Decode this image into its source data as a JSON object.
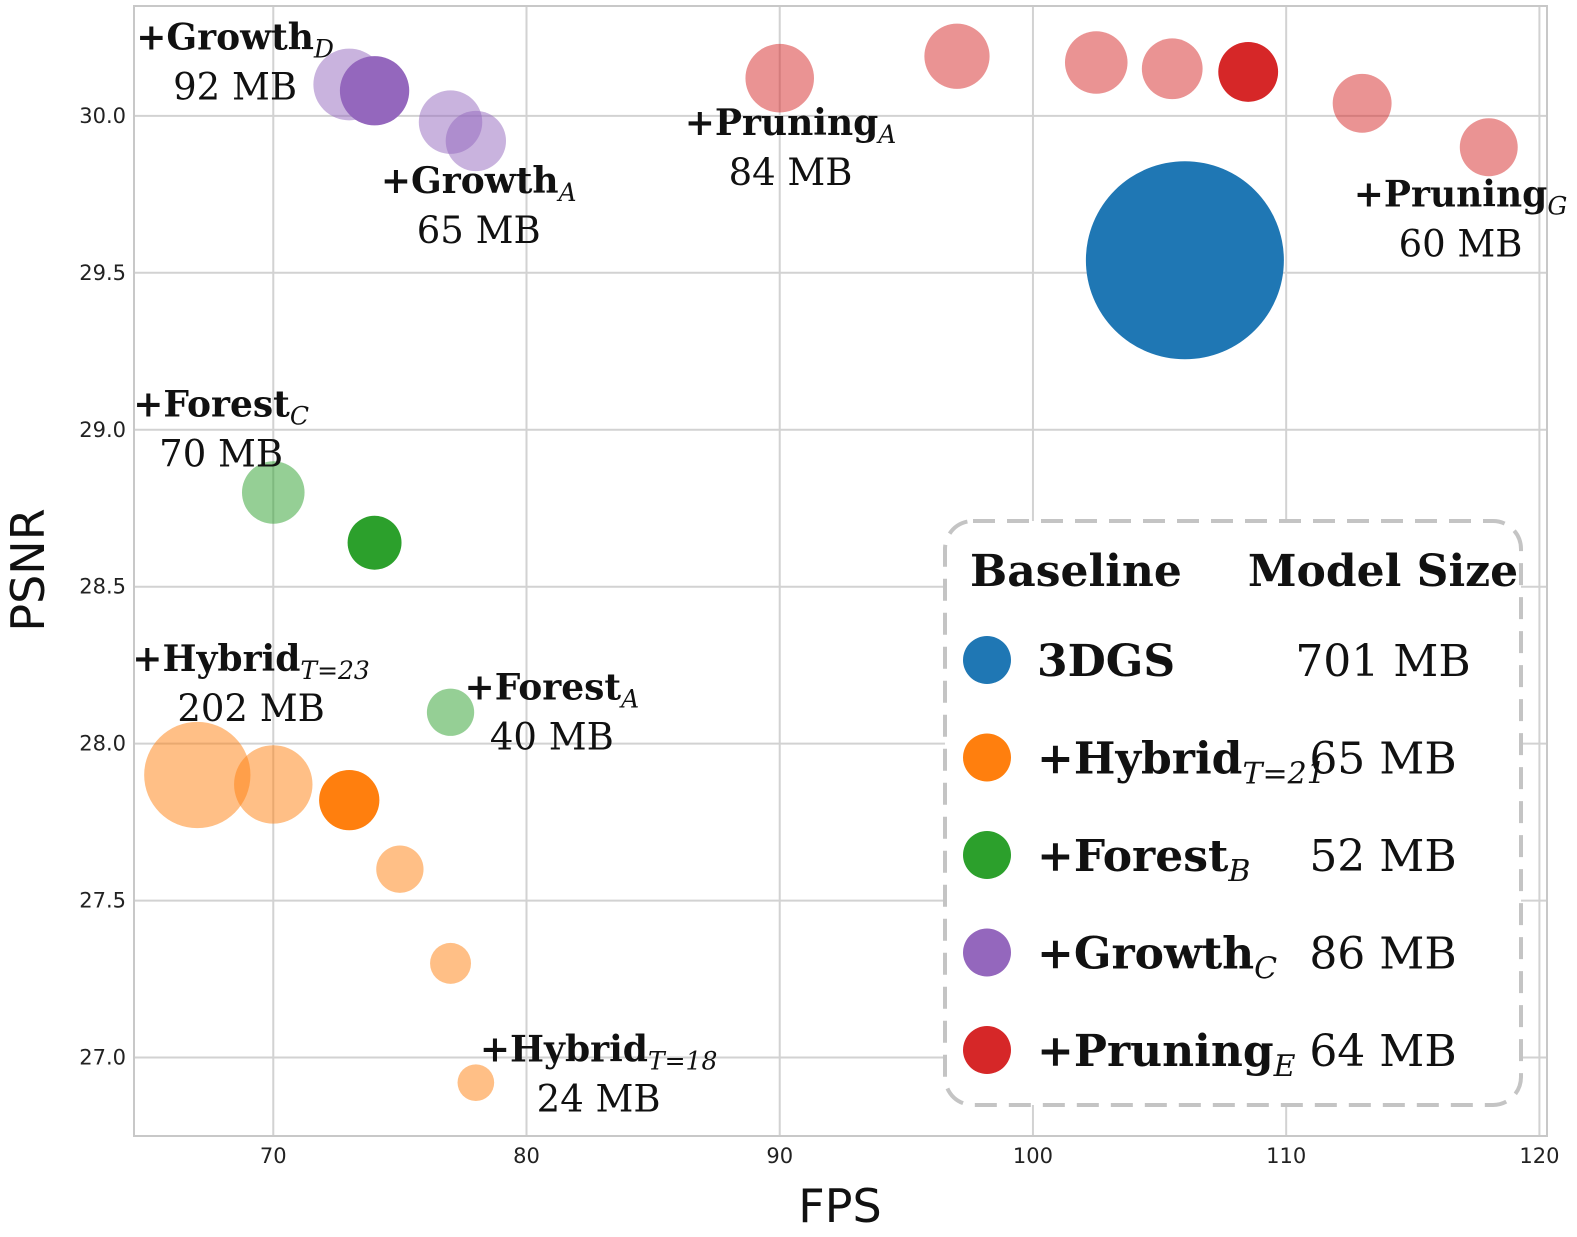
{
  "chart_data": {
    "type": "scatter",
    "xlabel": "FPS",
    "ylabel": "PSNR",
    "xlim": [
      64.5,
      120.3
    ],
    "ylim": [
      26.75,
      30.35
    ],
    "xticks": [
      "70",
      "80",
      "90",
      "100",
      "110",
      "120"
    ],
    "yticks": [
      "27.0",
      "27.5",
      "28.0",
      "28.5",
      "29.0",
      "29.5",
      "30.0"
    ],
    "grid": true,
    "colors": {
      "3dgs": "#1f77b4",
      "hybrid": "#ff7f0e",
      "forest": "#2ca02c",
      "growth": "#9467bd",
      "pruning": "#d62728"
    },
    "series": [
      {
        "name": "3DGS",
        "group": "3dgs",
        "points": [
          {
            "fps": 106,
            "psnr": 29.54,
            "size_mb": 701,
            "highlight": true
          }
        ]
      },
      {
        "name": "+Hybrid",
        "group": "hybrid",
        "points": [
          {
            "fps": 67,
            "psnr": 27.9,
            "size_mb": 202,
            "highlight": false
          },
          {
            "fps": 70,
            "psnr": 27.87,
            "size_mb": 110,
            "highlight": false
          },
          {
            "fps": 73,
            "psnr": 27.82,
            "size_mb": 65,
            "highlight": true
          },
          {
            "fps": 75,
            "psnr": 27.6,
            "size_mb": 40,
            "highlight": false
          },
          {
            "fps": 77,
            "psnr": 27.3,
            "size_mb": 30,
            "highlight": false
          },
          {
            "fps": 78,
            "psnr": 26.92,
            "size_mb": 24,
            "highlight": false
          }
        ]
      },
      {
        "name": "+Forest",
        "group": "forest",
        "points": [
          {
            "fps": 70,
            "psnr": 28.8,
            "size_mb": 70,
            "highlight": false
          },
          {
            "fps": 74,
            "psnr": 28.64,
            "size_mb": 52,
            "highlight": true
          },
          {
            "fps": 77,
            "psnr": 28.1,
            "size_mb": 40,
            "highlight": false
          }
        ]
      },
      {
        "name": "+Growth",
        "group": "growth",
        "points": [
          {
            "fps": 73,
            "psnr": 30.1,
            "size_mb": 92,
            "highlight": false
          },
          {
            "fps": 74,
            "psnr": 30.08,
            "size_mb": 86,
            "highlight": true
          },
          {
            "fps": 77,
            "psnr": 29.98,
            "size_mb": 72,
            "highlight": false
          },
          {
            "fps": 78,
            "psnr": 29.92,
            "size_mb": 65,
            "highlight": false
          }
        ]
      },
      {
        "name": "+Pruning",
        "group": "pruning",
        "points": [
          {
            "fps": 90,
            "psnr": 30.12,
            "size_mb": 84,
            "highlight": false
          },
          {
            "fps": 97,
            "psnr": 30.19,
            "size_mb": 76,
            "highlight": false
          },
          {
            "fps": 102.5,
            "psnr": 30.17,
            "size_mb": 70,
            "highlight": false
          },
          {
            "fps": 105.5,
            "psnr": 30.15,
            "size_mb": 66,
            "highlight": false
          },
          {
            "fps": 108.5,
            "psnr": 30.14,
            "size_mb": 64,
            "highlight": true
          },
          {
            "fps": 113,
            "psnr": 30.04,
            "size_mb": 62,
            "highlight": false
          },
          {
            "fps": 118,
            "psnr": 29.9,
            "size_mb": 60,
            "highlight": false
          }
        ]
      }
    ],
    "annotations": [
      {
        "base": "+Growth",
        "sub": "D",
        "size": "92 MB",
        "anchor": [
          73,
          30.1
        ]
      },
      {
        "base": "+Growth",
        "sub": "A",
        "size": "65 MB",
        "anchor": [
          78,
          29.92
        ]
      },
      {
        "base": "+Pruning",
        "sub": "A",
        "size": "84 MB",
        "anchor": [
          90,
          30.12
        ]
      },
      {
        "base": "+Pruning",
        "sub": "G",
        "size": "60 MB",
        "anchor": [
          118,
          29.9
        ]
      },
      {
        "base": "+Forest",
        "sub": "C",
        "size": "70 MB",
        "anchor": [
          70,
          28.8
        ]
      },
      {
        "base": "+Hybrid",
        "sub": "T=23",
        "size": "202 MB",
        "anchor": [
          67,
          27.9
        ]
      },
      {
        "base": "+Forest",
        "sub": "A",
        "size": "40 MB",
        "anchor": [
          77,
          28.1
        ]
      },
      {
        "base": "+Hybrid",
        "sub": "T=18",
        "size": "24 MB",
        "anchor": [
          78,
          26.92
        ]
      }
    ],
    "legend": {
      "placement": "bottom-right",
      "col_baseline": "Baseline",
      "col_size": "Model Size",
      "rows": [
        {
          "name": "3DGS",
          "sub": "",
          "size": "701 MB",
          "group": "3dgs"
        },
        {
          "name": "+Hybrid",
          "sub": "T=21",
          "size": "65 MB",
          "group": "hybrid"
        },
        {
          "name": "+Forest",
          "sub": "B",
          "size": "52 MB",
          "group": "forest"
        },
        {
          "name": "+Growth",
          "sub": "C",
          "size": "86 MB",
          "group": "growth"
        },
        {
          "name": "+Pruning",
          "sub": "E",
          "size": "64 MB",
          "group": "pruning"
        }
      ]
    }
  }
}
